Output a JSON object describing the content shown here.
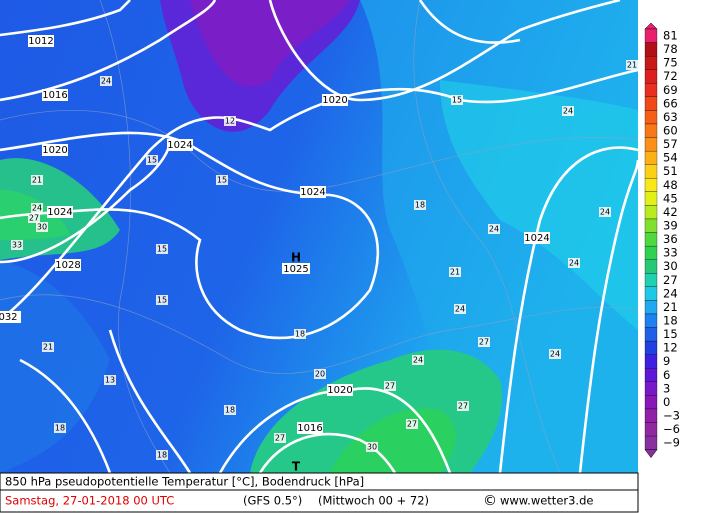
{
  "map": {
    "colorbar": {
      "labels": [
        "81",
        "78",
        "75",
        "72",
        "69",
        "66",
        "63",
        "60",
        "57",
        "54",
        "51",
        "48",
        "45",
        "42",
        "39",
        "36",
        "33",
        "30",
        "27",
        "24",
        "21",
        "18",
        "15",
        "12",
        "9",
        "6",
        "3",
        "0",
        "−3",
        "−6",
        "−9"
      ]
    },
    "isobar_labels": [
      "1012",
      "1016",
      "1020",
      "1024",
      "1024",
      "1028",
      "032",
      "1020",
      "1024",
      "1024",
      "1020",
      "1016"
    ],
    "high": {
      "symbol": "H",
      "value": "1025"
    },
    "low": {
      "symbol": "T"
    },
    "temperature_labels": [
      "24",
      "12",
      "15",
      "15",
      "21",
      "24",
      "27",
      "30",
      "33",
      "15",
      "15",
      "18",
      "24",
      "24",
      "24",
      "21",
      "24",
      "27",
      "24",
      "24",
      "24",
      "18",
      "21",
      "13",
      "20",
      "27",
      "27",
      "27",
      "18",
      "18",
      "18",
      "27",
      "30",
      "21",
      "15"
    ],
    "footer": {
      "line1": "850 hPa pseudopotentielle Temperatur [°C], Bodendruck [hPa]",
      "date": "Samstag, 27-01-2018  00 UTC",
      "model": "(GFS 0.5°)",
      "run": "(Mittwoch 00 + 72)",
      "copyright": "©",
      "site": "www.wetter3.de"
    }
  }
}
